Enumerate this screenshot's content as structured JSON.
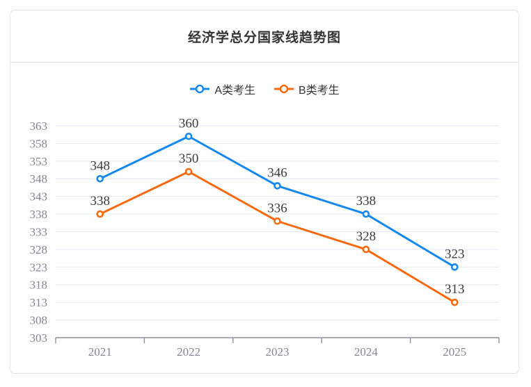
{
  "card": {
    "title": "经济学总分国家线趋势图"
  },
  "chart_data": {
    "type": "line",
    "title": "经济学总分国家线趋势图",
    "categories": [
      "2021",
      "2022",
      "2023",
      "2024",
      "2025"
    ],
    "series": [
      {
        "name": "A类考生",
        "color": "#1588F0",
        "values": [
          348,
          360,
          346,
          338,
          323
        ]
      },
      {
        "name": "B类考生",
        "color": "#F8690F",
        "values": [
          338,
          350,
          336,
          328,
          313
        ]
      }
    ],
    "xlabel": "",
    "ylabel": "",
    "ylim": [
      303,
      363
    ],
    "ytick_step": 5,
    "grid": true,
    "legend_position": "top-center",
    "data_labels": true,
    "marker": "hollow-circle"
  },
  "theme": {
    "grid_color": "#E6EBF5",
    "axis_color": "#8C909A",
    "tick_label_color": "#83868F",
    "data_label_color": "#3B3B3B",
    "legend_text_color": "#333333",
    "title_color": "#333333",
    "card_border_color": "#E4E4E4"
  }
}
